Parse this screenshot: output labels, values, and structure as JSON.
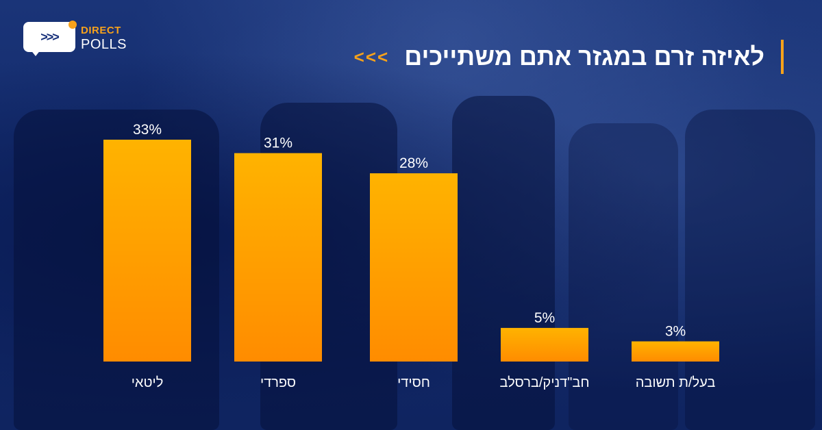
{
  "logo": {
    "text_top": "DIRECT",
    "text_bottom": "POLLS",
    "icon_glyph": ">>>",
    "icon": "chat-bubble-arrows-icon"
  },
  "title": {
    "text": "לאיזה זרם במגזר אתם משתייכים",
    "arrows": "<<<"
  },
  "colors": {
    "bar_top": "#ffb300",
    "bar_bottom": "#ff8c00",
    "accent": "#f7a21b",
    "text": "#ffffff",
    "background": "#142c6e"
  },
  "chart_data": {
    "type": "bar",
    "title": "לאיזה זרם במגזר אתם משתייכים",
    "categories": [
      "ליטאי",
      "ספרדי",
      "חסידי",
      "חב\"דניק/ברסלב",
      "בעל/ת תשובה"
    ],
    "values": [
      33,
      31,
      28,
      5,
      3
    ],
    "value_labels": [
      "33%",
      "31%",
      "28%",
      "5%",
      "3%"
    ],
    "unit": "%",
    "ylim": [
      0,
      33
    ],
    "grid": false,
    "legend": "none"
  }
}
